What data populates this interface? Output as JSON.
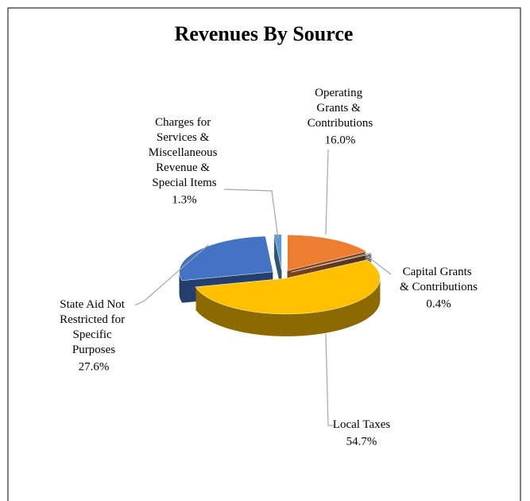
{
  "chart_data": {
    "type": "pie",
    "title": "Revenues By Source",
    "categories": [
      "Operating Grants & Contributions",
      "Capital Grants & Contributions",
      "Local Taxes",
      "State Aid Not Restricted for Specific Purposes",
      "Charges for Services & Miscellaneous Revenue & Special Items"
    ],
    "values": [
      16.0,
      0.4,
      54.7,
      27.6,
      1.3
    ],
    "value_labels": [
      "16.0%",
      "0.4%",
      "54.7%",
      "27.6%",
      "1.3%"
    ],
    "colors": [
      "#ed7d31",
      "#404040",
      "#ffc000",
      "#4472c4",
      "#5b9bd5"
    ]
  }
}
